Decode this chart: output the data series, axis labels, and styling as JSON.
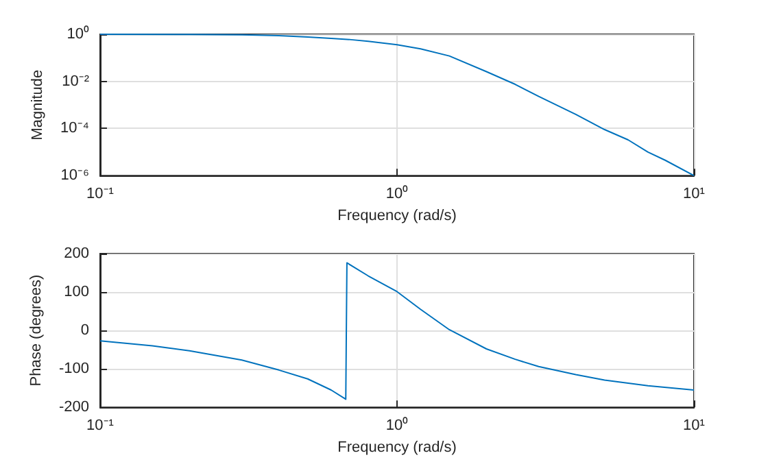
{
  "chart_data": [
    {
      "type": "line",
      "xlabel": "Frequency (rad/s)",
      "ylabel": "Magnitude",
      "log": "xy",
      "grid": true,
      "marker": "none",
      "line_style": "solid",
      "xlim": [
        0.1,
        10
      ],
      "xticks": [
        {
          "value": 0.1,
          "label": "10⁻¹"
        },
        {
          "value": 1,
          "label": "10⁰"
        },
        {
          "value": 10,
          "label": "10¹"
        }
      ],
      "ylim": [
        1e-06,
        1
      ],
      "yticks": [
        {
          "value": 1e-06,
          "label": "10⁻⁶"
        },
        {
          "value": 0.0001,
          "label": "10⁻⁴"
        },
        {
          "value": 0.01,
          "label": "10⁻²"
        },
        {
          "value": 1,
          "label": "10⁰"
        }
      ],
      "series": [
        {
          "color": "#0072bd",
          "x": [
            0.1,
            0.2,
            0.3,
            0.4,
            0.5,
            0.6,
            0.7,
            0.8,
            1.0,
            1.2,
            1.5,
            2,
            2.5,
            3,
            4,
            5,
            6,
            7,
            8,
            10
          ],
          "values": [
            1,
            0.98,
            0.95,
            0.87,
            0.76,
            0.67,
            0.59,
            0.5,
            0.36,
            0.24,
            0.12,
            0.026,
            0.0075,
            0.0023,
            0.0004,
            9e-05,
            3.3e-05,
            1e-05,
            4.5e-06,
            1e-06
          ]
        }
      ]
    },
    {
      "type": "line",
      "xlabel": "Frequency (rad/s)",
      "ylabel": "Phase (degrees)",
      "log": "x",
      "grid": true,
      "marker": "none",
      "line_style": "solid",
      "xlim": [
        0.1,
        10
      ],
      "xticks": [
        {
          "value": 0.1,
          "label": "10⁻¹"
        },
        {
          "value": 1,
          "label": "10⁰"
        },
        {
          "value": 10,
          "label": "10¹"
        }
      ],
      "ylim": [
        -200,
        200
      ],
      "yticks": [
        -200,
        -100,
        0,
        100,
        200
      ],
      "series": [
        {
          "color": "#0072bd",
          "x": [
            0.1,
            0.15,
            0.2,
            0.3,
            0.4,
            0.5,
            0.6,
            0.672,
            0.678,
            0.8,
            1.0,
            1.2,
            1.5,
            2,
            2.5,
            3,
            4,
            5,
            7,
            10
          ],
          "values": [
            -27,
            -40,
            -53,
            -77,
            -103,
            -126,
            -155,
            -179,
            176,
            142,
            101,
            55,
            2,
            -48,
            -75,
            -94,
            -115,
            -129,
            -144,
            -155
          ]
        }
      ]
    }
  ]
}
